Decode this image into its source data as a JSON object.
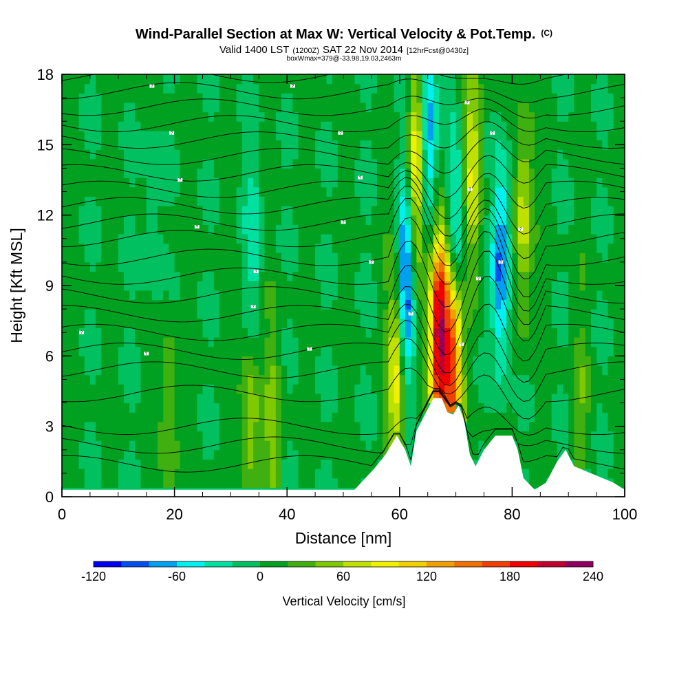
{
  "chart_data": {
    "type": "heatmap",
    "title": "Wind-Parallel Section at Max W: Vertical Velocity & Pot.Temp.",
    "title_mark": "(C)",
    "subtitle_prefix": "Valid 1400 LST",
    "subtitle_small1": "(1200Z)",
    "subtitle_mid": "SAT 22 Nov 2014",
    "subtitle_small2": "[12hrFcst@0430z]",
    "annotation": "boxWmax=379@-33.98,19.03,2463m",
    "xlabel": "Distance [nm]",
    "ylabel": "Height [Kft MSL]",
    "xlim": [
      0,
      100
    ],
    "ylim": [
      0,
      18
    ],
    "xticks": [
      0,
      20,
      40,
      60,
      80,
      100
    ],
    "yticks": [
      0,
      3,
      6,
      9,
      12,
      15,
      18
    ],
    "colorbar": {
      "label": "Vertical Velocity [cm/s]",
      "min": -120,
      "max": 240,
      "step": 20,
      "tick_values": [
        -120,
        -60,
        0,
        60,
        120,
        180,
        240
      ],
      "tick_labels": [
        "-120",
        "-60",
        "0",
        "60",
        "120",
        "180",
        "240"
      ],
      "colors": [
        "#0000f0",
        "#0050f0",
        "#00a0f0",
        "#00f0f0",
        "#00e0a0",
        "#00c060",
        "#00a020",
        "#40b010",
        "#80c800",
        "#c0e000",
        "#f0f000",
        "#f0d000",
        "#f0a000",
        "#f07000",
        "#f04000",
        "#f00000",
        "#c00030",
        "#900060"
      ]
    },
    "updrafts": [
      {
        "x": 33.5,
        "z": 3.5,
        "w": 60
      },
      {
        "x": 37.5,
        "z": 3.0,
        "w": 45
      },
      {
        "x": 19.0,
        "z": 3.0,
        "w": 40
      },
      {
        "x": 59.5,
        "z": 5.5,
        "w": 100
      },
      {
        "x": 63.0,
        "z": 14.0,
        "w": 110
      },
      {
        "x": 67.0,
        "z": 7.0,
        "w": 220
      },
      {
        "x": 69.5,
        "z": 6.0,
        "w": 180
      },
      {
        "x": 73.0,
        "z": 14.0,
        "w": 80
      },
      {
        "x": 82.0,
        "z": 12.0,
        "w": 70
      },
      {
        "x": 92.0,
        "z": 3.5,
        "w": 30
      }
    ],
    "downdrafts": [
      {
        "x": 61.0,
        "z": 9.0,
        "w": -110
      },
      {
        "x": 65.0,
        "z": 15.0,
        "w": -90
      },
      {
        "x": 70.0,
        "z": 11.0,
        "w": -80
      },
      {
        "x": 78.0,
        "z": 10.0,
        "w": -95
      },
      {
        "x": 34.0,
        "z": 10.0,
        "w": -40
      },
      {
        "x": 16.0,
        "z": 12.0,
        "w": -20
      }
    ],
    "terrain_kft": [
      {
        "x": 52,
        "z": 0.3
      },
      {
        "x": 55.5,
        "z": 1.2
      },
      {
        "x": 57.5,
        "z": 1.8
      },
      {
        "x": 59.5,
        "z": 2.6
      },
      {
        "x": 61,
        "z": 2.0
      },
      {
        "x": 62,
        "z": 1.3
      },
      {
        "x": 63,
        "z": 2.8
      },
      {
        "x": 64.5,
        "z": 3.5
      },
      {
        "x": 66,
        "z": 4.2
      },
      {
        "x": 67.5,
        "z": 4.2
      },
      {
        "x": 68.5,
        "z": 3.6
      },
      {
        "x": 69.5,
        "z": 3.5
      },
      {
        "x": 70.5,
        "z": 3.9
      },
      {
        "x": 71.5,
        "z": 3.2
      },
      {
        "x": 72.5,
        "z": 1.8
      },
      {
        "x": 73.5,
        "z": 1.3
      },
      {
        "x": 75,
        "z": 2.0
      },
      {
        "x": 77,
        "z": 2.6
      },
      {
        "x": 80,
        "z": 2.6
      },
      {
        "x": 81,
        "z": 2.0
      },
      {
        "x": 82,
        "z": 0.8
      },
      {
        "x": 84,
        "z": 0.3
      },
      {
        "x": 86,
        "z": 0.6
      },
      {
        "x": 88,
        "z": 1.5
      },
      {
        "x": 89.5,
        "z": 2.0
      },
      {
        "x": 91,
        "z": 1.3
      },
      {
        "x": 94,
        "z": 1.0
      },
      {
        "x": 96,
        "z": 0.8
      },
      {
        "x": 98,
        "z": 0.6
      },
      {
        "x": 100,
        "z": 0.3
      }
    ],
    "isentrope_levels_kft": [
      1.4,
      2.2,
      3.0,
      4.4,
      5.4,
      6.2,
      7.0,
      7.8,
      8.6,
      9.4,
      10.2,
      11.0,
      11.7,
      12.4,
      13.1,
      13.8,
      14.5,
      15.2,
      15.9,
      16.6,
      17.3,
      18.0
    ],
    "isentrope_labels": [
      {
        "x": 3.5,
        "z": 7.0,
        "text": "?"
      },
      {
        "x": 15,
        "z": 6.1,
        "text": "?"
      },
      {
        "x": 34,
        "z": 8.1,
        "text": "?"
      },
      {
        "x": 34.5,
        "z": 9.6,
        "text": "?"
      },
      {
        "x": 24,
        "z": 11.5,
        "text": "?"
      },
      {
        "x": 21,
        "z": 13.5,
        "text": "?"
      },
      {
        "x": 19.5,
        "z": 15.5,
        "text": "?"
      },
      {
        "x": 16,
        "z": 17.5,
        "text": "?"
      },
      {
        "x": 41,
        "z": 17.5,
        "text": "?"
      },
      {
        "x": 49.5,
        "z": 15.5,
        "text": "?"
      },
      {
        "x": 53,
        "z": 13.6,
        "text": "?"
      },
      {
        "x": 50,
        "z": 11.7,
        "text": "?"
      },
      {
        "x": 55,
        "z": 10.0,
        "text": "?"
      },
      {
        "x": 44,
        "z": 6.3,
        "text": "?"
      },
      {
        "x": 62,
        "z": 7.8,
        "text": "?"
      },
      {
        "x": 71,
        "z": 6.5,
        "text": "?"
      },
      {
        "x": 74,
        "z": 9.3,
        "text": "?"
      },
      {
        "x": 78,
        "z": 10.0,
        "text": "?"
      },
      {
        "x": 81.5,
        "z": 11.4,
        "text": "?"
      },
      {
        "x": 72.5,
        "z": 13.1,
        "text": "?"
      },
      {
        "x": 76.5,
        "z": 15.5,
        "text": "?"
      },
      {
        "x": 72,
        "z": 16.8,
        "text": "?"
      }
    ]
  }
}
